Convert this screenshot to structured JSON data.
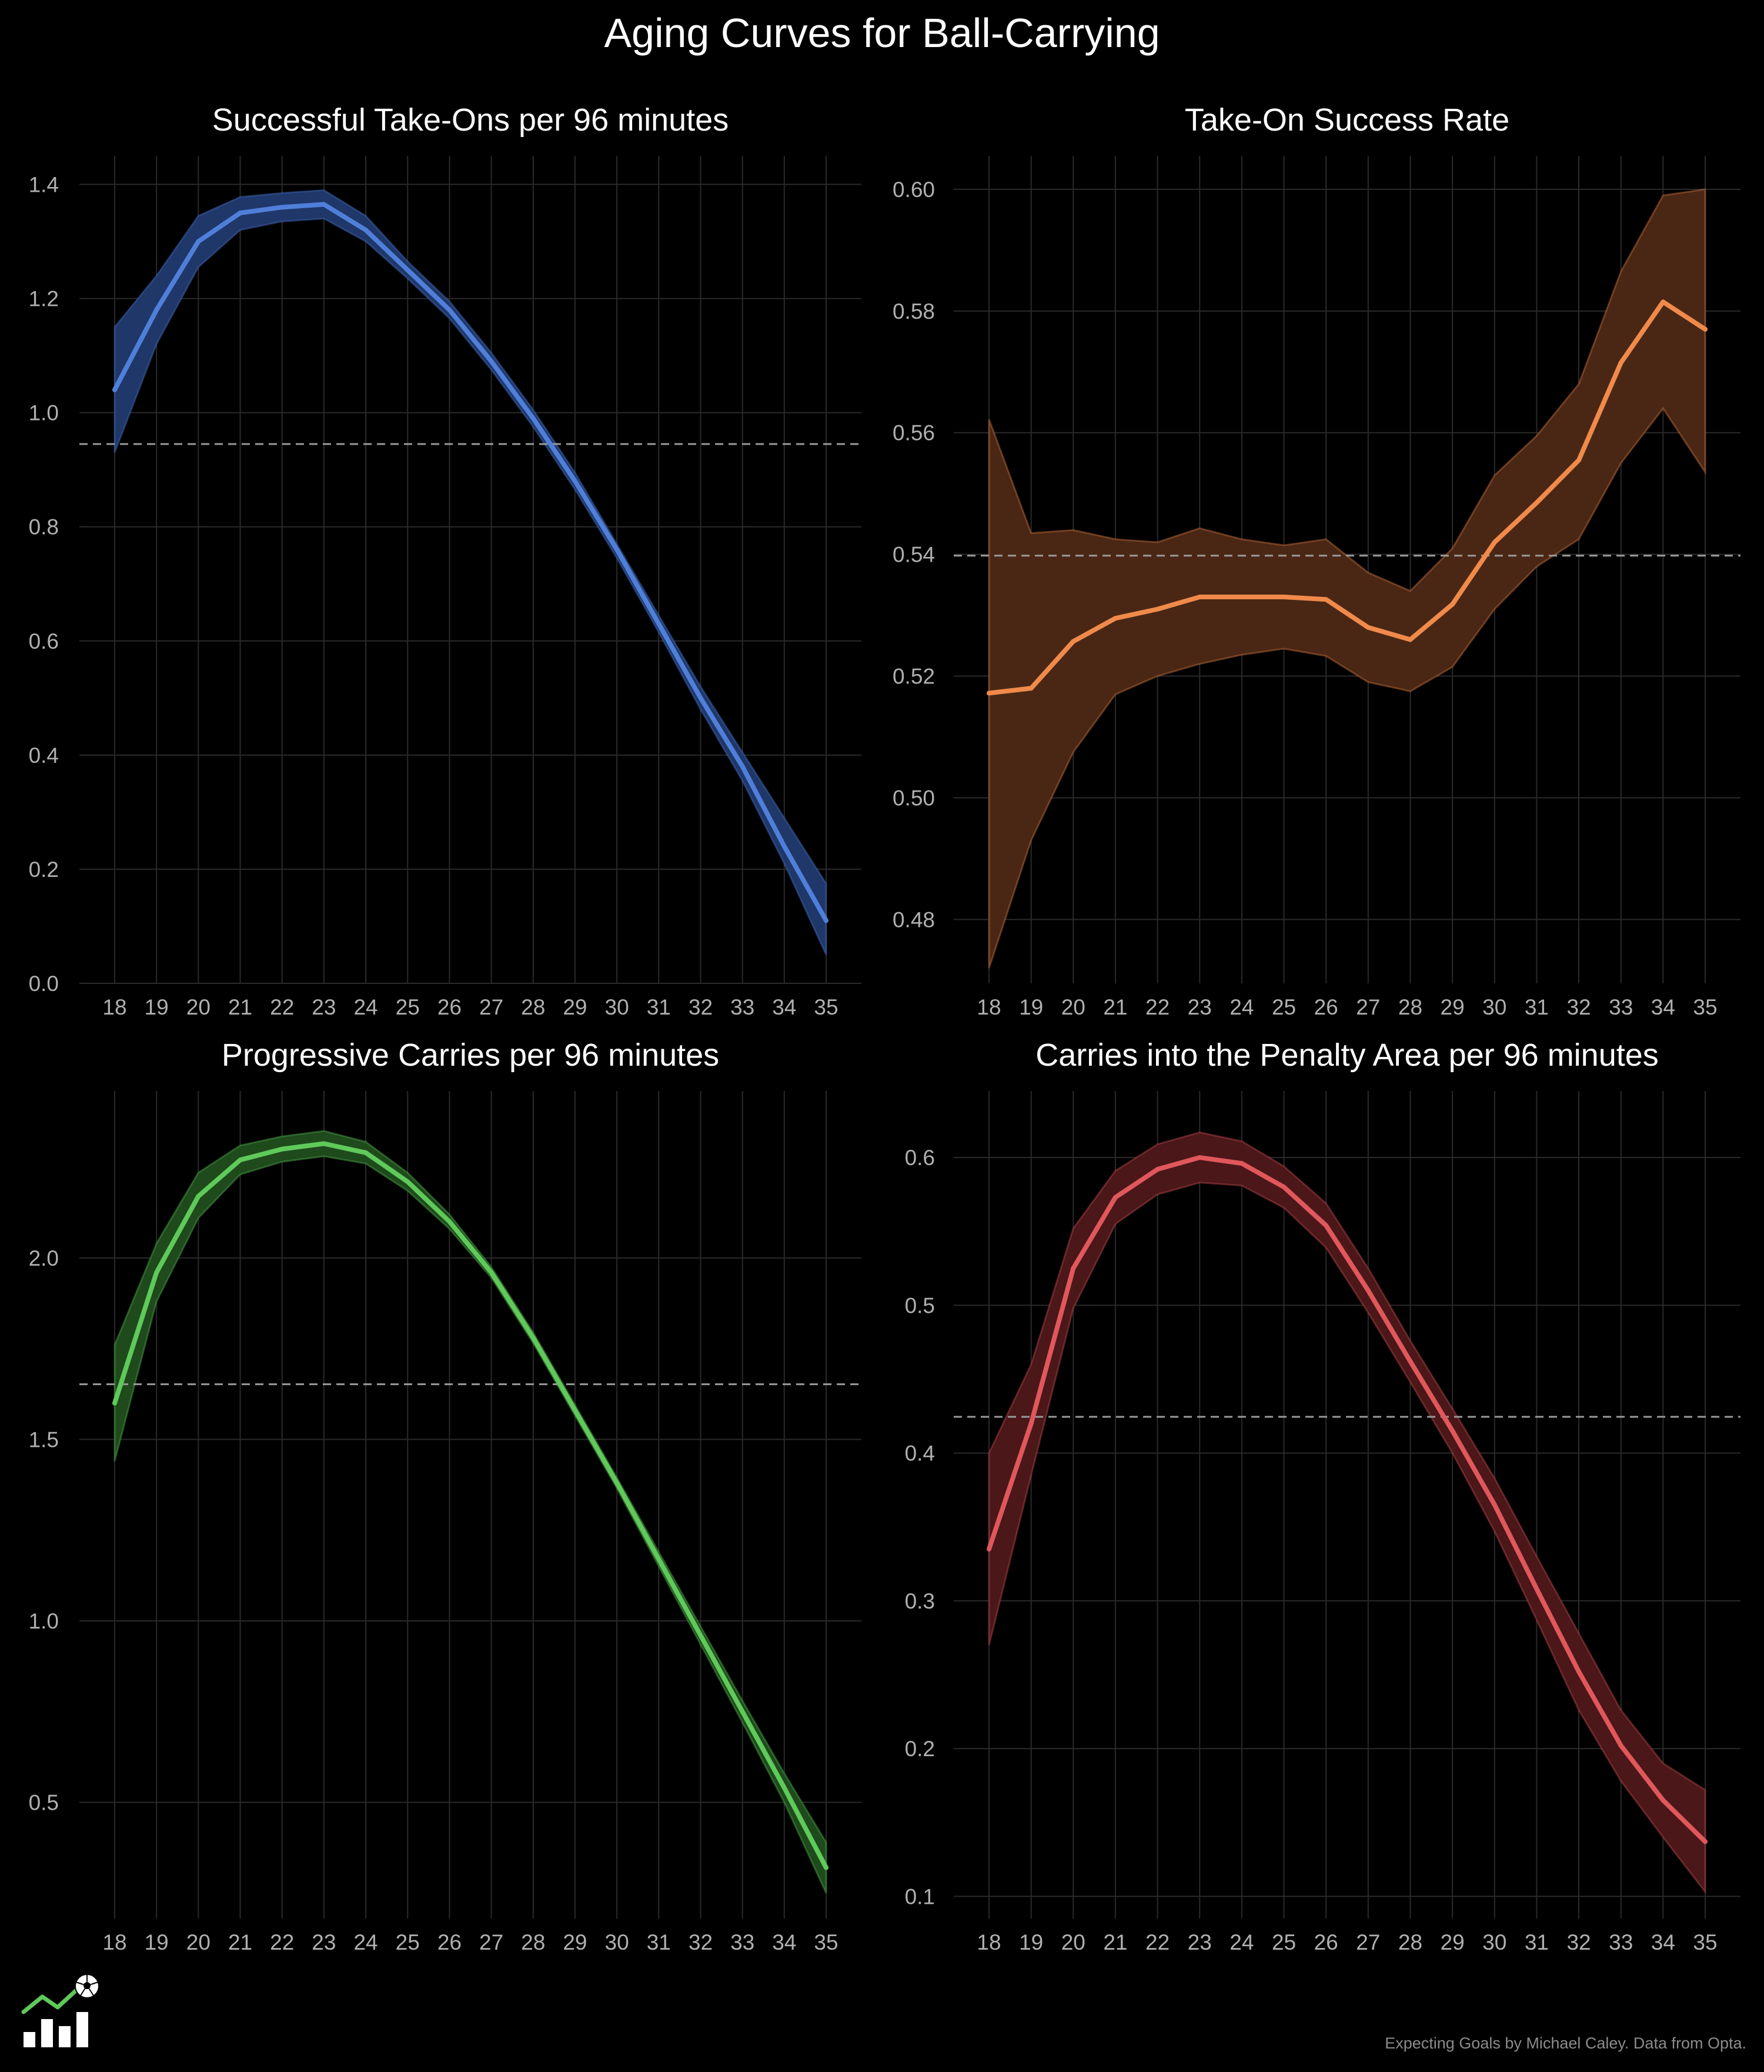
{
  "figure": {
    "title": "Aging Curves for Ball-Carrying",
    "caption": "Expecting Goals by Michael Caley. Data from Opta.",
    "logo_icon": "soccer-ball-chart-icon",
    "colors": {
      "background": "#000000",
      "grid": "#2a2a2a",
      "tick_text": "#b0b0b0",
      "title_text": "#ffffff",
      "reference_line": "#9a9a9a"
    }
  },
  "chart_data": [
    {
      "type": "line",
      "title": "Successful Take-Ons per 96 minutes",
      "xlabel": "",
      "ylabel": "",
      "x": [
        18,
        19,
        20,
        21,
        22,
        23,
        24,
        25,
        26,
        27,
        28,
        29,
        30,
        31,
        32,
        33,
        34,
        35
      ],
      "series": [
        {
          "name": "Successful Take-Ons per 96 minutes",
          "values": [
            1.04,
            1.18,
            1.3,
            1.35,
            1.36,
            1.365,
            1.32,
            1.25,
            1.18,
            1.09,
            0.99,
            0.88,
            0.76,
            0.63,
            0.5,
            0.38,
            0.24,
            0.11
          ]
        }
      ],
      "band_upper": [
        1.15,
        1.24,
        1.345,
        1.378,
        1.385,
        1.39,
        1.345,
        1.265,
        1.195,
        1.105,
        1.005,
        0.895,
        0.77,
        0.645,
        0.52,
        0.405,
        0.29,
        0.175
      ],
      "band_lower": [
        0.93,
        1.12,
        1.255,
        1.32,
        1.335,
        1.34,
        1.3,
        1.235,
        1.165,
        1.075,
        0.975,
        0.865,
        0.745,
        0.615,
        0.48,
        0.355,
        0.21,
        0.05
      ],
      "reference": 0.945,
      "ylim": [
        0.0,
        1.45
      ],
      "yticks": [
        0.0,
        0.2,
        0.4,
        0.6,
        0.8,
        1.0,
        1.2,
        1.4
      ],
      "ytick_labels": [
        "0.0",
        "0.2",
        "0.4",
        "0.6",
        "0.8",
        "1.0",
        "1.2",
        "1.4"
      ],
      "color": "#4f7fd9",
      "band_color": "#1f3769"
    },
    {
      "type": "line",
      "title": "Take-On Success Rate",
      "xlabel": "",
      "ylabel": "",
      "x": [
        18,
        19,
        20,
        21,
        22,
        23,
        24,
        25,
        26,
        27,
        28,
        29,
        30,
        31,
        32,
        33,
        34,
        35
      ],
      "series": [
        {
          "name": "Take-On Success Rate",
          "values": [
            0.5172,
            0.518,
            0.5257,
            0.5295,
            0.531,
            0.533,
            0.533,
            0.533,
            0.5326,
            0.528,
            0.526,
            0.5318,
            0.542,
            0.5485,
            0.5555,
            0.5715,
            0.5815,
            0.577
          ]
        }
      ],
      "band_upper": [
        0.5622,
        0.5435,
        0.544,
        0.5425,
        0.542,
        0.5443,
        0.5425,
        0.5415,
        0.5425,
        0.537,
        0.534,
        0.541,
        0.553,
        0.5595,
        0.568,
        0.5865,
        0.599,
        0.6
      ],
      "band_lower": [
        0.472,
        0.493,
        0.5075,
        0.517,
        0.52,
        0.522,
        0.5235,
        0.5245,
        0.5233,
        0.519,
        0.5175,
        0.5215,
        0.531,
        0.538,
        0.5425,
        0.555,
        0.564,
        0.5535
      ],
      "reference": 0.5398,
      "ylim": [
        0.4695,
        0.6055
      ],
      "yticks": [
        0.48,
        0.5,
        0.52,
        0.54,
        0.56,
        0.58,
        0.6
      ],
      "ytick_labels": [
        "0.48",
        "0.50",
        "0.52",
        "0.54",
        "0.56",
        "0.58",
        "0.60"
      ],
      "color": "#f08a4b",
      "band_color": "#4a2714"
    },
    {
      "type": "line",
      "title": "Progressive Carries per 96 minutes",
      "xlabel": "",
      "ylabel": "",
      "x": [
        18,
        19,
        20,
        21,
        22,
        23,
        24,
        25,
        26,
        27,
        28,
        29,
        30,
        31,
        32,
        33,
        34,
        35
      ],
      "series": [
        {
          "name": "Progressive Carries per 96 minutes",
          "values": [
            1.6,
            1.96,
            2.17,
            2.27,
            2.3,
            2.315,
            2.29,
            2.21,
            2.1,
            1.96,
            1.78,
            1.58,
            1.38,
            1.17,
            0.96,
            0.75,
            0.54,
            0.32
          ]
        }
      ],
      "band_upper": [
        1.76,
        2.04,
        2.235,
        2.31,
        2.335,
        2.35,
        2.32,
        2.235,
        2.12,
        1.975,
        1.795,
        1.595,
        1.395,
        1.19,
        0.985,
        0.78,
        0.58,
        0.39
      ],
      "band_lower": [
        1.44,
        1.88,
        2.11,
        2.23,
        2.265,
        2.28,
        2.26,
        2.185,
        2.08,
        1.945,
        1.765,
        1.565,
        1.365,
        1.15,
        0.935,
        0.72,
        0.5,
        0.25
      ],
      "reference": 1.652,
      "ylim": [
        0.18,
        2.46
      ],
      "yticks": [
        0.5,
        1.0,
        1.5,
        2.0
      ],
      "ytick_labels": [
        "0.5",
        "1.0",
        "1.5",
        "2.0"
      ],
      "color": "#5fc95a",
      "band_color": "#1e4a1c"
    },
    {
      "type": "line",
      "title": "Carries into the Penalty Area per 96 minutes",
      "xlabel": "",
      "ylabel": "",
      "x": [
        18,
        19,
        20,
        21,
        22,
        23,
        24,
        25,
        26,
        27,
        28,
        29,
        30,
        31,
        32,
        33,
        34,
        35
      ],
      "series": [
        {
          "name": "Carries into the Penalty Area per 96 minutes",
          "values": [
            0.335,
            0.42,
            0.525,
            0.573,
            0.592,
            0.6,
            0.596,
            0.58,
            0.554,
            0.51,
            0.462,
            0.415,
            0.365,
            0.308,
            0.252,
            0.202,
            0.165,
            0.137
          ]
        }
      ],
      "band_upper": [
        0.4,
        0.46,
        0.552,
        0.591,
        0.609,
        0.617,
        0.611,
        0.594,
        0.569,
        0.525,
        0.476,
        0.43,
        0.383,
        0.33,
        0.278,
        0.226,
        0.19,
        0.172
      ],
      "band_lower": [
        0.27,
        0.385,
        0.498,
        0.555,
        0.575,
        0.583,
        0.581,
        0.566,
        0.539,
        0.495,
        0.448,
        0.4,
        0.347,
        0.287,
        0.226,
        0.178,
        0.14,
        0.103
      ],
      "reference": 0.4245,
      "ylim": [
        0.085,
        0.645
      ],
      "yticks": [
        0.1,
        0.2,
        0.3,
        0.4,
        0.5,
        0.6
      ],
      "ytick_labels": [
        "0.1",
        "0.2",
        "0.3",
        "0.4",
        "0.5",
        "0.6"
      ],
      "color": "#e0575c",
      "band_color": "#4b1719"
    }
  ]
}
